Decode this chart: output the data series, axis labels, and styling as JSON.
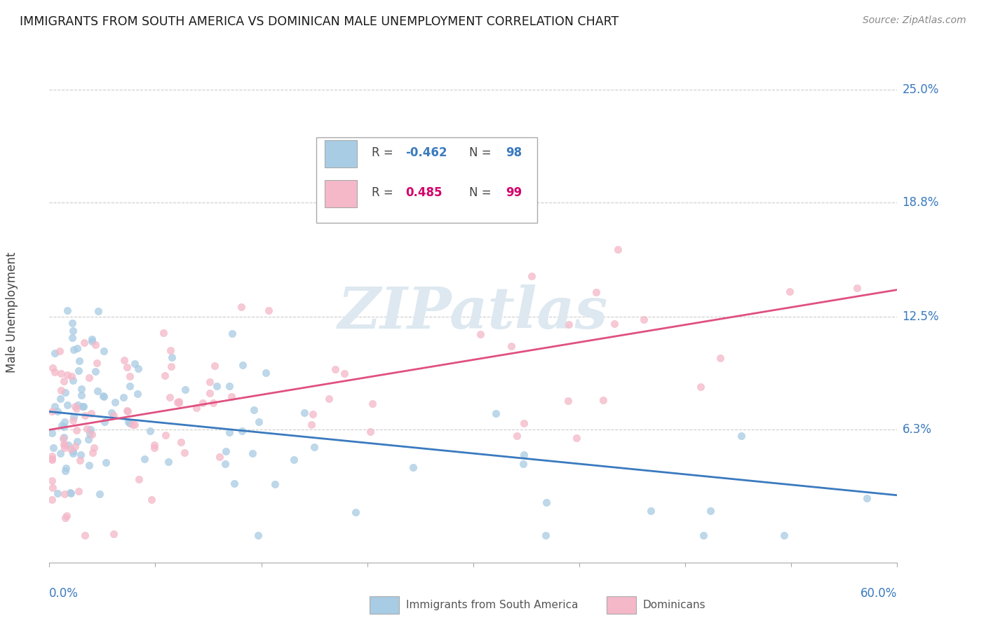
{
  "title": "IMMIGRANTS FROM SOUTH AMERICA VS DOMINICAN MALE UNEMPLOYMENT CORRELATION CHART",
  "source": "Source: ZipAtlas.com",
  "ylabel": "Male Unemployment",
  "color_blue": "#a8cce4",
  "color_pink": "#f4b8c8",
  "color_blue_line": "#3a7abf",
  "color_pink_line": "#e05080",
  "color_blue_text": "#3a7abf",
  "color_pink_text": "#d4006b",
  "x_lim": [
    0.0,
    0.6
  ],
  "y_lim": [
    -0.01,
    0.265
  ],
  "y_tick_vals": [
    0.063,
    0.125,
    0.188,
    0.25
  ],
  "y_tick_labels": [
    "6.3%",
    "12.5%",
    "18.8%",
    "25.0%"
  ],
  "blue_R": -0.462,
  "blue_N": 98,
  "pink_R": 0.485,
  "pink_N": 99,
  "blue_trend_start": 0.073,
  "blue_trend_end": 0.027,
  "pink_trend_start": 0.063,
  "pink_trend_end": 0.14
}
